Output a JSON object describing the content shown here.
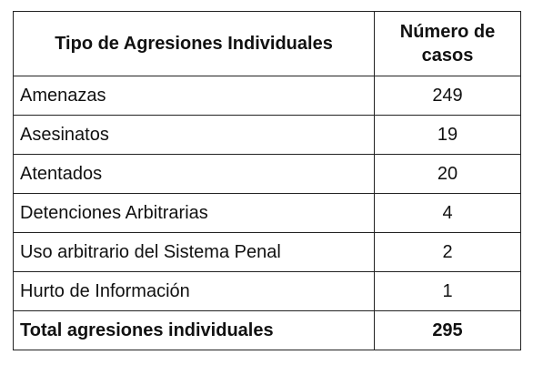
{
  "table": {
    "headers": [
      "Tipo de Agresiones  Individuales",
      "Número de casos"
    ],
    "rows": [
      {
        "label": "Amenazas",
        "value": "249"
      },
      {
        "label": "Asesinatos",
        "value": "19"
      },
      {
        "label": "Atentados",
        "value": "20"
      },
      {
        "label": "Detenciones Arbitrarias",
        "value": "4"
      },
      {
        "label": "Uso arbitrario del Sistema Penal",
        "value": "2"
      },
      {
        "label": "Hurto de Información",
        "value": "1"
      }
    ],
    "total": {
      "label": "Total agresiones individuales",
      "value": "295"
    }
  }
}
